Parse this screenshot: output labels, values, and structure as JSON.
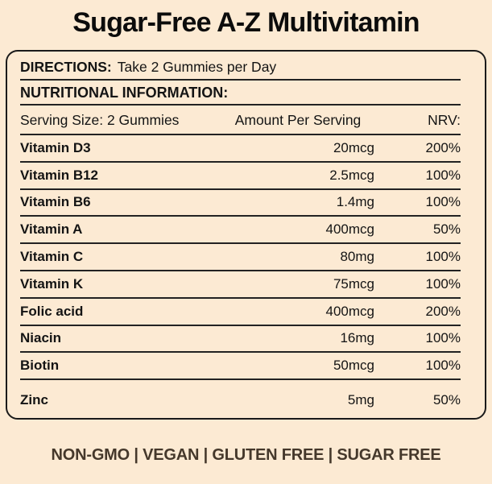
{
  "page": {
    "title": "Sugar-Free A-Z Multivitamin",
    "background_color": "#fcead3",
    "panel_border_color": "#1a1a1a",
    "text_color": "#141414",
    "footer_text_color": "#45382b"
  },
  "directions": {
    "label": "DIRECTIONS:",
    "text": "Take 2 Gummies per Day"
  },
  "nutrition": {
    "section_title": "NUTRITIONAL INFORMATION:",
    "header": {
      "serving": "Serving Size: 2 Gummies",
      "amount": "Amount Per Serving",
      "nrv": "NRV:"
    },
    "rows": [
      {
        "name": "Vitamin D3",
        "amount": "20mcg",
        "nrv": "200%"
      },
      {
        "name": "Vitamin B12",
        "amount": "2.5mcg",
        "nrv": "100%"
      },
      {
        "name": "Vitamin B6",
        "amount": "1.4mg",
        "nrv": "100%"
      },
      {
        "name": "Vitamin A",
        "amount": "400mcg",
        "nrv": "50%"
      },
      {
        "name": "Vitamin C",
        "amount": "80mg",
        "nrv": "100%"
      },
      {
        "name": "Vitamin K",
        "amount": "75mcg",
        "nrv": "100%"
      },
      {
        "name": "Folic acid",
        "amount": "400mcg",
        "nrv": "200%"
      },
      {
        "name": "Niacin",
        "amount": "16mg",
        "nrv": "100%"
      },
      {
        "name": "Biotin",
        "amount": "50mcg",
        "nrv": "100%"
      },
      {
        "name": "Zinc",
        "amount": "5mg",
        "nrv": "50%"
      }
    ]
  },
  "footer": {
    "badges_text": "NON-GMO | VEGAN | GLUTEN FREE | SUGAR FREE"
  }
}
